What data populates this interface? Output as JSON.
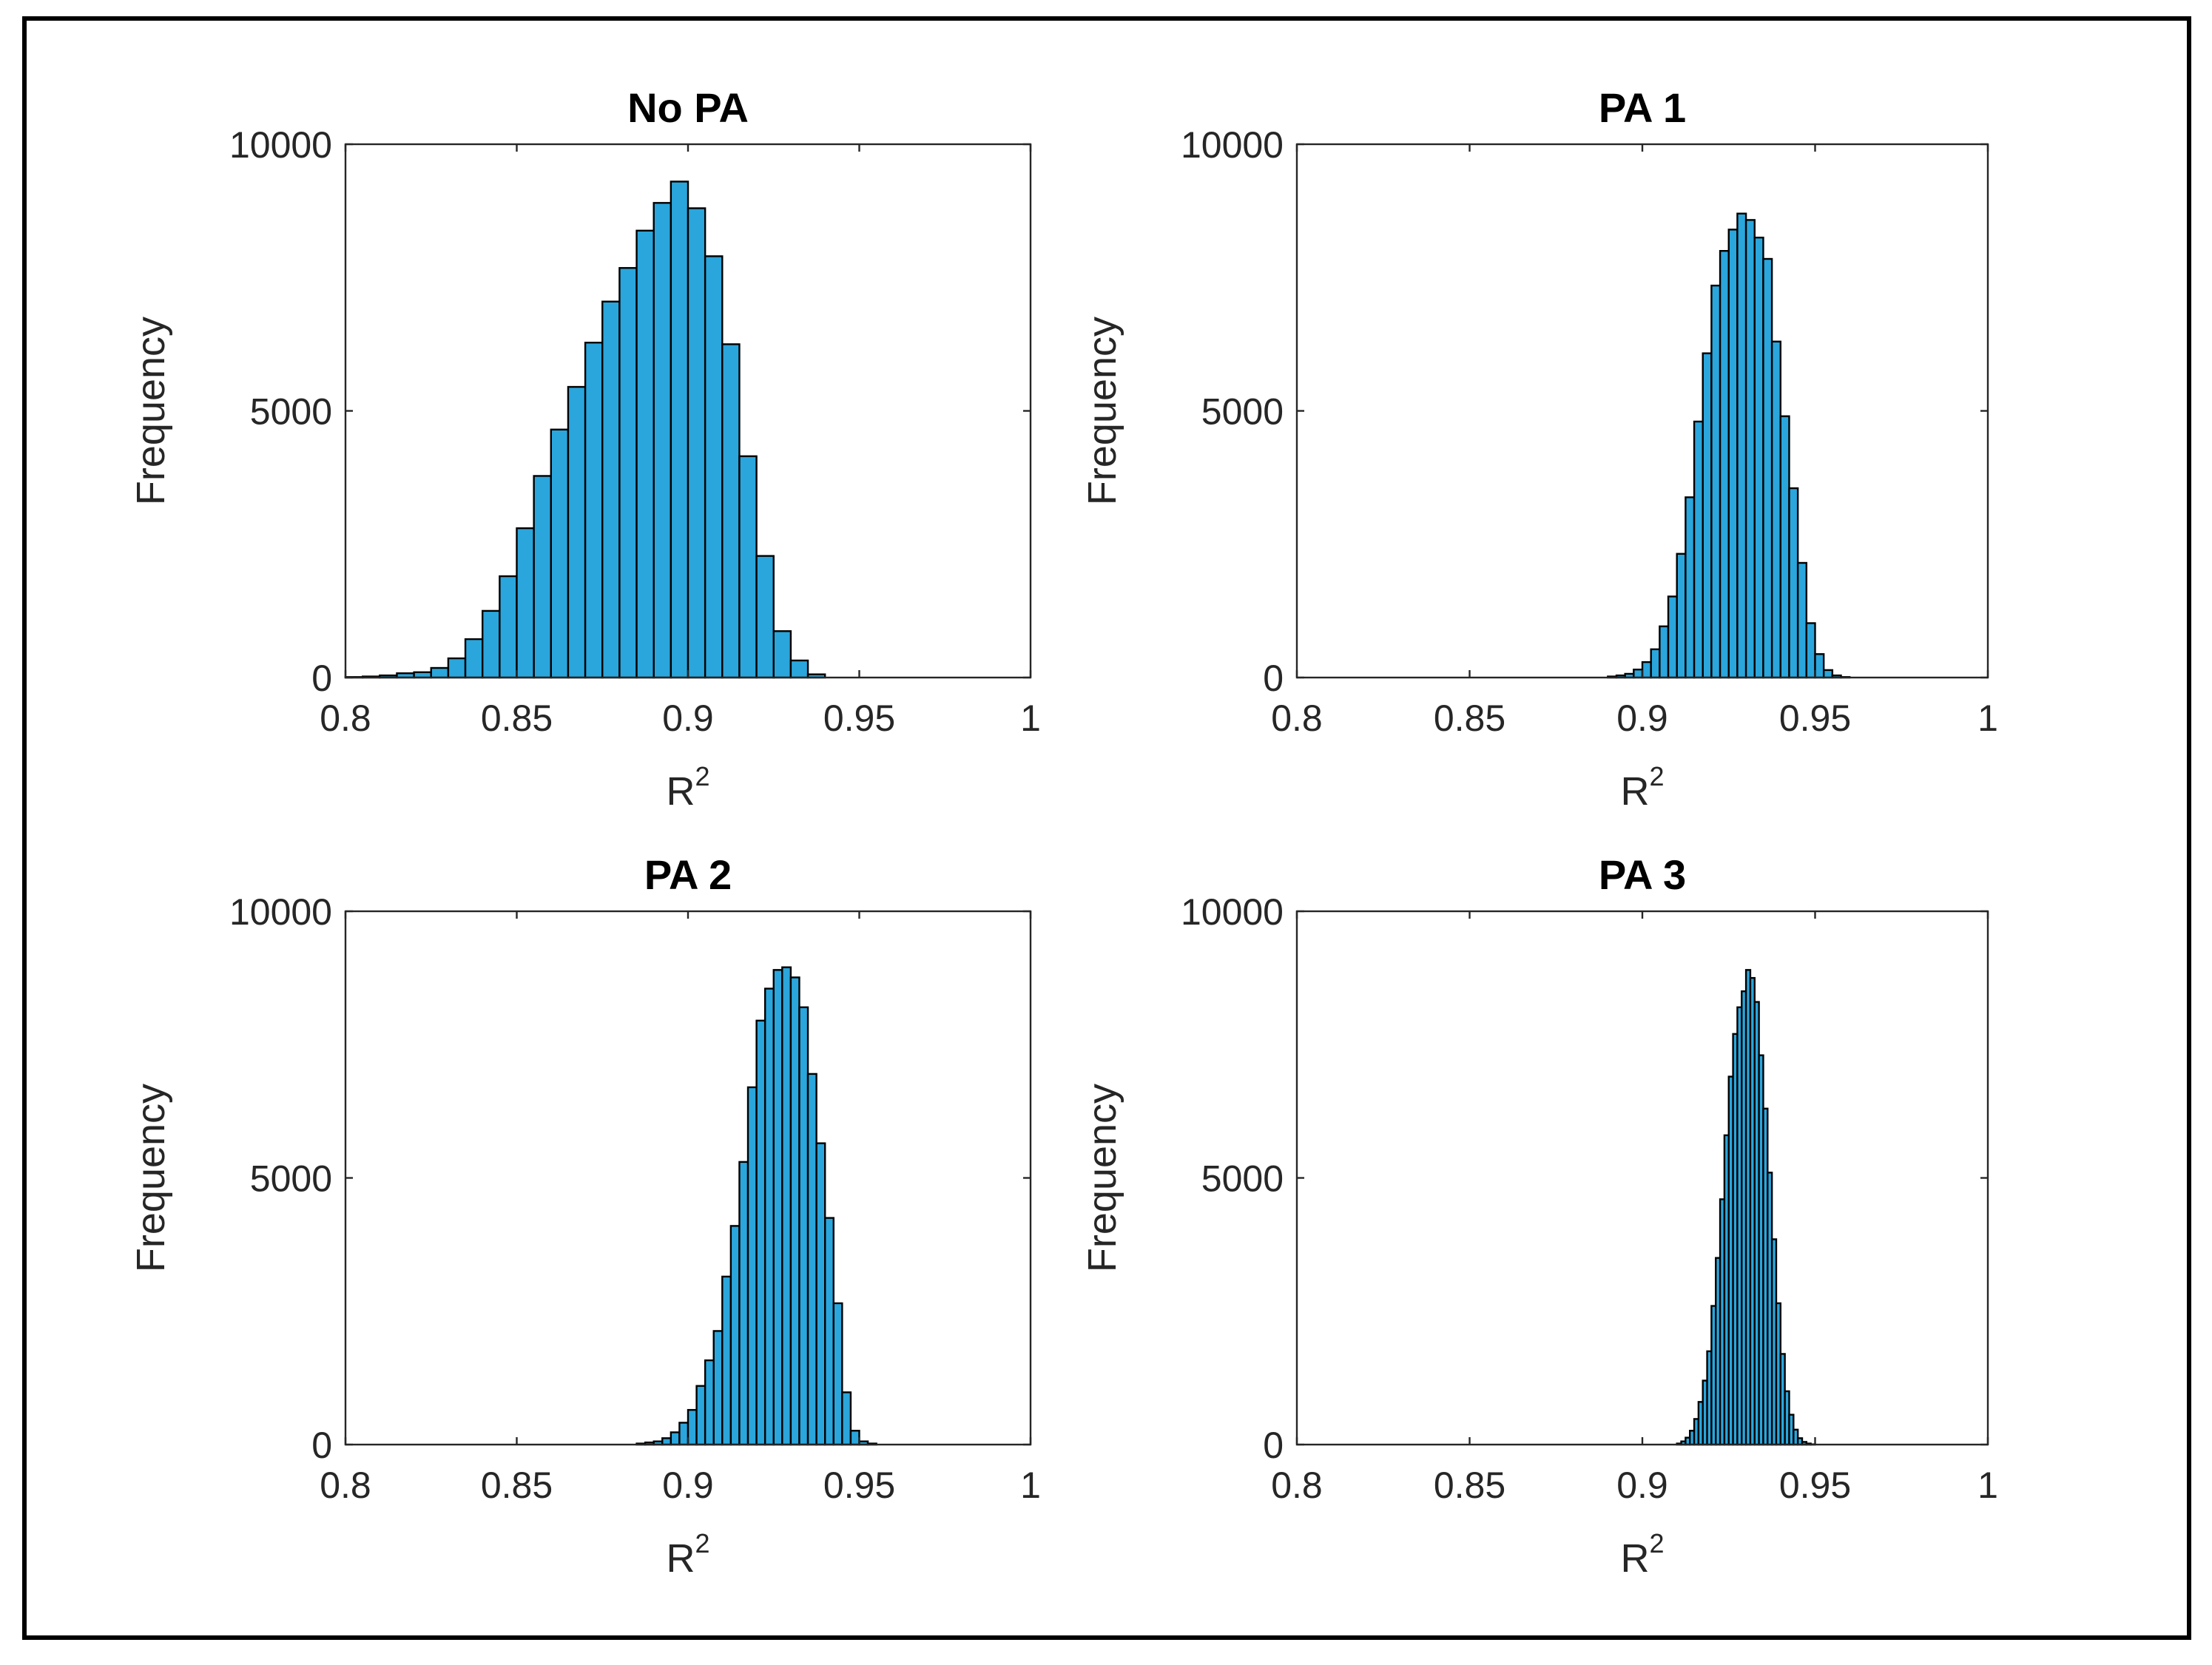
{
  "chart_data": [
    {
      "type": "bar",
      "title": "No PA",
      "xlabel": "R",
      "xlabel_superscript": "2",
      "ylabel": "Frequency",
      "xlim": [
        0.8,
        1
      ],
      "ylim": [
        0,
        10000
      ],
      "xticks": [
        "0.8",
        "0.85",
        "0.9",
        "0.95",
        "1"
      ],
      "yticks": [
        "0",
        "5000",
        "10000"
      ],
      "bar_color": "#2aa6dc",
      "bin_start": 0.8,
      "bin_width": 0.005,
      "values": [
        10,
        20,
        40,
        80,
        100,
        180,
        360,
        720,
        1250,
        1900,
        2800,
        3780,
        4650,
        5450,
        6280,
        7050,
        7680,
        8380,
        8900,
        9300,
        8800,
        7900,
        6250,
        4150,
        2280,
        870,
        320,
        60,
        0,
        0,
        0,
        0,
        0,
        0,
        0,
        0,
        0,
        0,
        0,
        0
      ]
    },
    {
      "type": "bar",
      "title": "PA 1",
      "xlabel": "R",
      "xlabel_superscript": "2",
      "ylabel": "Frequency",
      "xlim": [
        0.8,
        1
      ],
      "ylim": [
        0,
        10000
      ],
      "xticks": [
        "0.8",
        "0.85",
        "0.9",
        "0.95",
        "1"
      ],
      "yticks": [
        "0",
        "5000",
        "10000"
      ],
      "bar_color": "#2aa6dc",
      "bin_start": 0.89,
      "bin_width": 0.0025,
      "values": [
        20,
        40,
        70,
        150,
        290,
        530,
        960,
        1520,
        2320,
        3380,
        4800,
        6080,
        7350,
        8000,
        8400,
        8700,
        8580,
        8250,
        7850,
        6300,
        4900,
        3550,
        2150,
        1020,
        440,
        140,
        40,
        10
      ]
    },
    {
      "type": "bar",
      "title": "PA 2",
      "xlabel": "R",
      "xlabel_superscript": "2",
      "ylabel": "Frequency",
      "xlim": [
        0.8,
        1
      ],
      "ylim": [
        0,
        10000
      ],
      "xticks": [
        "0.8",
        "0.85",
        "0.9",
        "0.95",
        "1"
      ],
      "yticks": [
        "0",
        "5000",
        "10000"
      ],
      "bar_color": "#2aa6dc",
      "bin_start": 0.885,
      "bin_width": 0.0025,
      "values": [
        20,
        40,
        60,
        120,
        230,
        410,
        650,
        1100,
        1580,
        2130,
        3150,
        4100,
        5300,
        6700,
        7950,
        8550,
        8900,
        8950,
        8760,
        8200,
        6950,
        5650,
        4250,
        2650,
        980,
        260,
        60,
        20
      ]
    },
    {
      "type": "bar",
      "title": "PA 3",
      "xlabel": "R",
      "xlabel_superscript": "2",
      "ylabel": "Frequency",
      "xlim": [
        0.8,
        1
      ],
      "ylim": [
        0,
        10000
      ],
      "xticks": [
        "0.8",
        "0.85",
        "0.9",
        "0.95",
        "1"
      ],
      "yticks": [
        "0",
        "5000",
        "10000"
      ],
      "bar_color": "#2aa6dc",
      "bin_start": 0.91,
      "bin_width": 0.00125,
      "values": [
        20,
        60,
        130,
        260,
        480,
        800,
        1200,
        1750,
        2600,
        3500,
        4600,
        5800,
        6900,
        7700,
        8200,
        8500,
        8900,
        8750,
        8300,
        7300,
        6300,
        5100,
        3850,
        2650,
        1700,
        1000,
        560,
        280,
        120,
        50,
        20,
        5
      ]
    }
  ]
}
